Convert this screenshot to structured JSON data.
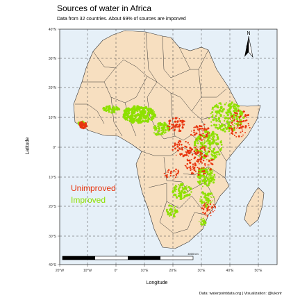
{
  "header": {
    "title": "Sources of water in Africa",
    "subtitle": "Data from 32 countries. About 69% of sources are imporved"
  },
  "axes": {
    "xlabel": "Longitude",
    "ylabel": "Latitude",
    "x_ticks": [
      "20°W",
      "10°W",
      "0°",
      "10°E",
      "20°E",
      "30°E",
      "40°E",
      "50°E"
    ],
    "y_ticks": [
      "40°N",
      "30°N",
      "20°N",
      "10°N",
      "0°",
      "10°S",
      "20°S",
      "30°S",
      "40°S"
    ]
  },
  "legend": {
    "unimproved": "Unimproved",
    "improved": "Improved"
  },
  "scale_bar": {
    "label": "4000 km"
  },
  "north_arrow": {
    "label": "N"
  },
  "caption": "Data: waterpointdata.org | Visualization: @lukorir",
  "colors": {
    "ocean": "#e6f0f8",
    "land": "#f7dfc0",
    "border": "#333333",
    "unimproved": "#e8350e",
    "improved": "#8ee000"
  },
  "map_data": {
    "lon_range": [
      -20,
      55
    ],
    "lat_range": [
      -40,
      40
    ],
    "unimproved_share_pct": 31,
    "improved_share_pct": 69
  }
}
